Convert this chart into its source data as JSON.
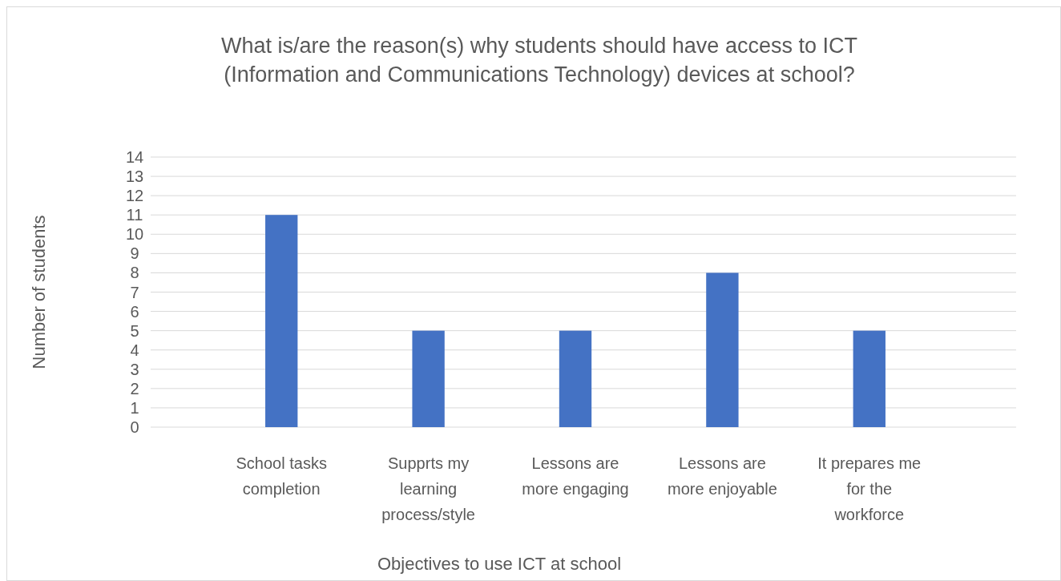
{
  "chart_data": {
    "type": "bar",
    "title": "What is/are the reason(s) why students should have access to ICT (Information and Communications Technology) devices at school?",
    "xlabel": "Objectives to use ICT at school",
    "ylabel": "Number of students",
    "categories": [
      "School tasks completion",
      "Supprts my learning process/style",
      "Lessons are more engaging",
      "Lessons are more enjoyable",
      "It prepares me for the workforce"
    ],
    "values": [
      11,
      5,
      5,
      8,
      5
    ],
    "color": "#4472c4",
    "ylim": [
      0,
      14
    ],
    "yticks": [
      0,
      1,
      2,
      3,
      4,
      5,
      6,
      7,
      8,
      9,
      10,
      11,
      12,
      13,
      14
    ],
    "grid": true
  }
}
